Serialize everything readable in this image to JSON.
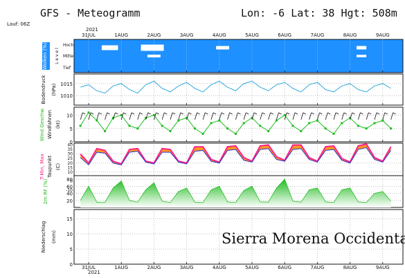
{
  "header": {
    "title": "GFS - Meteogramm",
    "location": "Lon: -6 Lat: 38 Hgt: 508m",
    "run": "Lauf: 06Z"
  },
  "top_axis": {
    "year": "2021",
    "dates": [
      "31JUL",
      "1AUG",
      "2AUG",
      "3AUG",
      "4AUG",
      "5AUG",
      "6AUG",
      "7AUG",
      "8AUG",
      "9AUG"
    ]
  },
  "bottom_axis": {
    "year": "2021",
    "dates": [
      "31JUL",
      "1AUG",
      "2AUG",
      "3AUG",
      "4AUG",
      "5AUG",
      "6AUG",
      "7AUG",
      "8AUG",
      "9AUG"
    ]
  },
  "watermark": "Sierra Morena Occidental",
  "colors": {
    "clouds_bg": "#1e90ff",
    "pressure": "#33aadd",
    "wind": "#22bb22",
    "temp_max": "#ff2288",
    "temp_min": "#2233cc",
    "dewpoint": "#222222",
    "rh_fill": "#22bb22",
    "grid": "#999999"
  },
  "panels": {
    "clouds": {
      "ylabel": "Wolken (%)",
      "level_label": "L e v e l",
      "levels": [
        "Hoch",
        "Mittel",
        "Tief"
      ]
    },
    "pressure": {
      "ylabel_1": "Bodendruck",
      "ylabel_2": "(hPa)",
      "ticks": [
        "1015",
        "1010"
      ]
    },
    "wind": {
      "ylabel_1": "Wind Geschw.",
      "ylabel_2": "Windfahnen",
      "ylabel_3": "(kt)",
      "ticks": [
        "10",
        "5",
        "0"
      ]
    },
    "temp": {
      "ylabel_1": "T-Min, Max",
      "ylabel_2": "Taupunkt",
      "ylabel_3": "(C)",
      "ticks": [
        "40",
        "35",
        "30",
        "25",
        "20",
        "15",
        "10",
        "0",
        "-10"
      ]
    },
    "rh": {
      "ylabel": "2m RF (%)",
      "ticks": [
        "80",
        "60",
        "40",
        "20"
      ]
    },
    "precip": {
      "ylabel_1": "Niederschlag",
      "ylabel_2": "(mm)",
      "ticks": [
        "15",
        "10",
        "5",
        "0"
      ]
    }
  },
  "chart_data": [
    {
      "type": "area",
      "title": "Wolken (%)",
      "levels": [
        "Hoch",
        "Mittel",
        "Tief"
      ],
      "high_cloud_events": [
        {
          "start_day": 0.4,
          "end_day": 0.9,
          "coverage": 40
        },
        {
          "start_day": 1.6,
          "end_day": 2.3,
          "coverage": 60
        },
        {
          "start_day": 3.9,
          "end_day": 4.3,
          "coverage": 20
        },
        {
          "start_day": 8.2,
          "end_day": 8.5,
          "coverage": 20
        }
      ],
      "mid_cloud_events": [
        {
          "start_day": 1.8,
          "end_day": 2.2,
          "coverage": 20
        },
        {
          "start_day": 8.2,
          "end_day": 8.5,
          "coverage": 15
        }
      ]
    },
    {
      "type": "line",
      "title": "Bodendruck (hPa)",
      "x_unit": "days since 31JUL 00Z",
      "ylim": [
        1006,
        1019
      ],
      "x": [
        -0.25,
        0,
        0.25,
        0.5,
        0.75,
        1,
        1.25,
        1.5,
        1.75,
        2,
        2.25,
        2.5,
        2.75,
        3,
        3.25,
        3.5,
        3.75,
        4,
        4.25,
        4.5,
        4.75,
        5,
        5.25,
        5.5,
        5.75,
        6,
        6.25,
        6.5,
        6.75,
        7,
        7.25,
        7.5,
        7.75,
        8,
        8.25,
        8.5,
        8.75,
        9,
        9.25
      ],
      "values": [
        1013.5,
        1014.5,
        1012,
        1011,
        1014,
        1015,
        1012.5,
        1011,
        1014.5,
        1016,
        1013,
        1011.5,
        1014,
        1015.5,
        1013,
        1011.5,
        1014.5,
        1016,
        1013.5,
        1012,
        1015,
        1016,
        1013.5,
        1012,
        1014.5,
        1015.5,
        1013,
        1011.5,
        1014.5,
        1015.5,
        1012.5,
        1011.5,
        1014,
        1015,
        1012.5,
        1011.5,
        1014,
        1015,
        1013
      ]
    },
    {
      "type": "line",
      "title": "Wind Geschw. (kt)",
      "ylim": [
        0,
        13
      ],
      "x": [
        -0.25,
        0,
        0.25,
        0.5,
        0.75,
        1,
        1.25,
        1.5,
        1.75,
        2,
        2.25,
        2.5,
        2.75,
        3,
        3.25,
        3.5,
        3.75,
        4,
        4.25,
        4.5,
        4.75,
        5,
        5.25,
        5.5,
        5.75,
        6,
        6.25,
        6.5,
        6.75,
        7,
        7.25,
        7.5,
        7.75,
        8,
        8.25,
        8.5,
        8.75,
        9,
        9.25
      ],
      "values": [
        6,
        11,
        8,
        4,
        9,
        10,
        6,
        5,
        9,
        10,
        6,
        4,
        8,
        9,
        5,
        3,
        7,
        8,
        5,
        3,
        7,
        9,
        6,
        4,
        8,
        10,
        6,
        4,
        7,
        8,
        5,
        3,
        7,
        9,
        6,
        5,
        7,
        8,
        5
      ]
    },
    {
      "type": "area",
      "title": "T-Min, Max, Taupunkt (C)",
      "ylim": [
        -10,
        42
      ],
      "x": [
        -0.25,
        0,
        0.25,
        0.5,
        0.75,
        1,
        1.25,
        1.5,
        1.75,
        2,
        2.25,
        2.5,
        2.75,
        3,
        3.25,
        3.5,
        3.75,
        4,
        4.25,
        4.5,
        4.75,
        5,
        5.25,
        5.5,
        5.75,
        6,
        6.25,
        6.5,
        6.75,
        7,
        7.25,
        7.5,
        7.75,
        8,
        8.25,
        8.5,
        8.75,
        9,
        9.25
      ],
      "series": [
        {
          "name": "Max",
          "values": [
            30,
            20,
            36,
            34,
            22,
            19,
            35,
            36,
            22,
            20,
            36,
            35,
            22,
            20,
            38,
            38,
            24,
            21,
            38,
            39,
            26,
            22,
            39,
            40,
            27,
            23,
            40,
            40,
            26,
            22,
            38,
            39,
            25,
            21,
            39,
            41,
            26,
            22,
            38
          ]
        },
        {
          "name": "Min",
          "values": [
            26,
            18,
            32,
            31,
            20,
            18,
            32,
            33,
            21,
            19,
            32,
            32,
            21,
            19,
            33,
            34,
            22,
            20,
            34,
            35,
            23,
            21,
            35,
            36,
            24,
            22,
            35,
            36,
            24,
            21,
            34,
            35,
            23,
            20,
            35,
            37,
            24,
            21,
            34
          ]
        },
        {
          "name": "Taupunkt",
          "values": [
            2,
            -6,
            0,
            4,
            0,
            -4,
            2,
            6,
            2,
            -2,
            0,
            4,
            2,
            0,
            0,
            2,
            0,
            -2,
            2,
            4,
            0,
            -2,
            2,
            4,
            2,
            -2,
            4,
            6,
            2,
            0,
            2,
            4,
            2,
            -2,
            2,
            4,
            2,
            0,
            2
          ]
        }
      ]
    },
    {
      "type": "area",
      "title": "2m RF (%)",
      "ylim": [
        0,
        90
      ],
      "x": [
        -0.25,
        0,
        0.25,
        0.5,
        0.75,
        1,
        1.25,
        1.5,
        1.75,
        2,
        2.25,
        2.5,
        2.75,
        3,
        3.25,
        3.5,
        3.75,
        4,
        4.25,
        4.5,
        4.75,
        5,
        5.25,
        5.5,
        5.75,
        6,
        6.25,
        6.5,
        6.75,
        7,
        7.25,
        7.5,
        7.75,
        8,
        8.25,
        8.5,
        8.75,
        9,
        9.25
      ],
      "values": [
        20,
        60,
        15,
        14,
        55,
        75,
        20,
        15,
        50,
        70,
        18,
        14,
        45,
        55,
        15,
        14,
        50,
        60,
        16,
        14,
        48,
        60,
        16,
        15,
        55,
        80,
        18,
        15,
        50,
        55,
        16,
        14,
        50,
        55,
        16,
        14,
        40,
        45,
        18
      ]
    },
    {
      "type": "bar",
      "title": "Niederschlag (mm)",
      "ylim": [
        0,
        18
      ],
      "values": []
    }
  ]
}
